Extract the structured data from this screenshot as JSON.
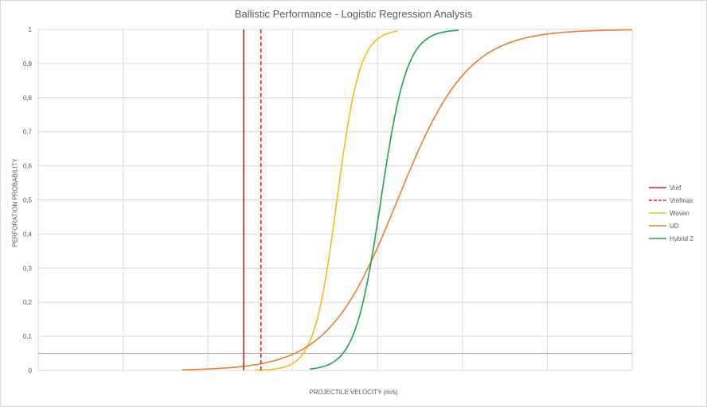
{
  "chart_data": {
    "type": "line",
    "title": "Ballistic Performance - Logistic Regression Analysis",
    "xlabel": "PROJECTILE VELOCITY (m/s)",
    "ylabel": "PERFORATION PROBABILITY",
    "ylim": [
      0,
      1
    ],
    "yticks": [
      "0",
      "0,1",
      "0,2",
      "0,3",
      "0,4",
      "0,5",
      "0,6",
      "0,7",
      "0,8",
      "0,9",
      "1"
    ],
    "x_tick_labels_shown": false,
    "grid": "on",
    "threshold_line": 0.05,
    "legend_position": "right",
    "vertical_lines": [
      {
        "name": "Vref",
        "x": 0.346,
        "color": "#e02020",
        "style": "solid"
      },
      {
        "name": "Vrefmax",
        "x": 0.375,
        "color": "#e02020",
        "style": "dashed"
      }
    ],
    "series": [
      {
        "name": "Woven",
        "color": "#f2be1b",
        "x0": 0.503,
        "k": 52,
        "xmin": 0.365,
        "xmax": 0.605
      },
      {
        "name": "UD",
        "color": "#ed7d31",
        "x0": 0.605,
        "k": 17,
        "xmin": 0.242,
        "xmax": 1.0
      },
      {
        "name": "Hybrid 2",
        "color": "#1aa64a",
        "x0": 0.577,
        "k": 46,
        "xmin": 0.457,
        "xmax": 0.708
      }
    ],
    "legend": [
      "Vref",
      "Vrefmax",
      "Woven",
      "UD",
      "Hybrid 2"
    ]
  }
}
